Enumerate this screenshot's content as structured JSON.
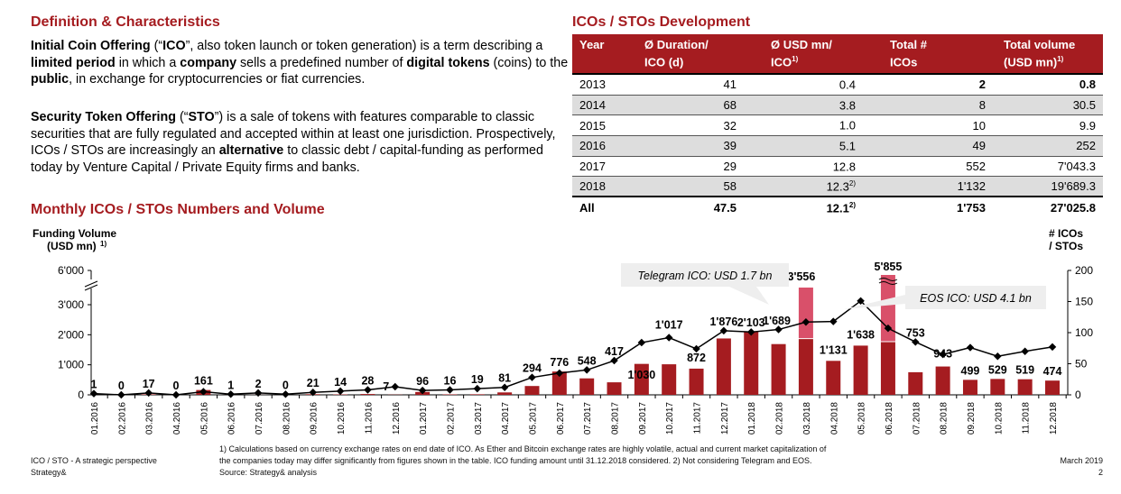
{
  "definition": {
    "title": "Definition & Characteristics",
    "ico_paragraph": [
      {
        "t": "Initial Coin Offering",
        "b": true
      },
      {
        "t": " (“",
        "b": false
      },
      {
        "t": "ICO",
        "b": true
      },
      {
        "t": "”, also token launch or token generation) is a term describing a ",
        "b": false
      },
      {
        "t": "limited period",
        "b": true
      },
      {
        "t": " in which a ",
        "b": false
      },
      {
        "t": "company",
        "b": true
      },
      {
        "t": " sells a predefined number of ",
        "b": false
      },
      {
        "t": "digital tokens",
        "b": true
      },
      {
        "t": " (coins) to the ",
        "b": false
      },
      {
        "t": "public",
        "b": true
      },
      {
        "t": ", in exchange for cryptocurrencies or fiat currencies.",
        "b": false
      }
    ],
    "sto_paragraph": [
      {
        "t": "Security Token Offering",
        "b": true
      },
      {
        "t": " (“",
        "b": false
      },
      {
        "t": "STO",
        "b": true
      },
      {
        "t": "”) is a sale of tokens with features comparable to classic securities that are fully regulated and accepted within at least one jurisdiction. Prospectively, ICOs / STOs are increasingly an ",
        "b": false
      },
      {
        "t": "alternative",
        "b": true
      },
      {
        "t": " to classic debt / capital-funding as performed today by Venture Capital / Private Equity firms and banks.",
        "b": false
      }
    ]
  },
  "table": {
    "title": "ICOs / STOs Development",
    "headers": [
      {
        "l1": "Year",
        "l2": "",
        "sup": ""
      },
      {
        "l1": "Ø Duration/",
        "l2": "ICO (d)",
        "sup": ""
      },
      {
        "l1": "Ø USD mn/",
        "l2": "ICO",
        "sup": "1)"
      },
      {
        "l1": "Total #",
        "l2": "ICOs",
        "sup": ""
      },
      {
        "l1": "Total volume",
        "l2": "(USD mn)",
        "sup": "1)"
      }
    ],
    "rows": [
      {
        "year": "2013",
        "duration": "41",
        "usd_per_ico": "0.4",
        "sup": "",
        "total": "2",
        "volume": "0.8"
      },
      {
        "year": "2014",
        "duration": "68",
        "usd_per_ico": "3.8",
        "sup": "",
        "total": "8",
        "volume": "30.5"
      },
      {
        "year": "2015",
        "duration": "32",
        "usd_per_ico": "1.0",
        "sup": "",
        "total": "10",
        "volume": "9.9"
      },
      {
        "year": "2016",
        "duration": "39",
        "usd_per_ico": "5.1",
        "sup": "",
        "total": "49",
        "volume": "252"
      },
      {
        "year": "2017",
        "duration": "29",
        "usd_per_ico": "12.8",
        "sup": "",
        "total": "552",
        "volume": "7'043.3"
      },
      {
        "year": "2018",
        "duration": "58",
        "usd_per_ico": "12.3",
        "sup": "2)",
        "total": "1'132",
        "volume": "19'689.3"
      },
      {
        "year": "All",
        "duration": "47.5",
        "usd_per_ico": "12.1",
        "sup": "2)",
        "total": "1'753",
        "volume": "27'025.8"
      }
    ]
  },
  "chart_title": "Monthly ICOs / STOs Numbers and Volume",
  "colors": {
    "accent": "#a51c20",
    "highlight": "#d9506a",
    "line": "#000000"
  },
  "chart_data": {
    "type": "bar+line",
    "left_axis_label": "Funding Volume (USD mn)",
    "left_axis_sup": "1)",
    "right_axis_label": "# ICOs / STOs",
    "left_ticks": [
      "0",
      "1'000",
      "2'000",
      "3'000",
      "6'000"
    ],
    "left_axis_break": "between 3'000 and 6'000",
    "right_ticks": [
      "0",
      "50",
      "100",
      "150",
      "200"
    ],
    "ylim_right": [
      0,
      200
    ],
    "categories": [
      "01.2016",
      "02.2016",
      "03.2016",
      "04.2016",
      "05.2016",
      "06.2016",
      "07.2016",
      "08.2016",
      "09.2016",
      "10.2016",
      "11.2016",
      "12.2016",
      "01.2017",
      "02.2017",
      "03.2017",
      "04.2017",
      "05.2017",
      "06.2017",
      "07.2017",
      "08.2017",
      "09.2017",
      "10.2017",
      "11.2017",
      "12.2017",
      "01.2018",
      "02.2018",
      "03.2018",
      "04.2018",
      "05.2018",
      "06.2018",
      "07.2018",
      "08.2018",
      "09.2018",
      "10.2018",
      "11.2018",
      "12.2018"
    ],
    "volume_labels": [
      "1",
      "0",
      "17",
      "0",
      "161",
      "1",
      "2",
      "0",
      "21",
      "14",
      "28",
      "7",
      "96",
      "16",
      "19",
      "81",
      "294",
      "776",
      "548",
      "417",
      "1'030",
      "1'017",
      "872",
      "1'876",
      "2'103",
      "1'689",
      "3'556",
      "1'131",
      "1'638",
      "5'855",
      "753",
      "943",
      "499",
      "529",
      "519",
      "474"
    ],
    "volume_usd_mn": [
      1,
      0,
      17,
      0,
      161,
      1,
      2,
      0,
      21,
      14,
      28,
      7,
      96,
      16,
      19,
      81,
      294,
      776,
      548,
      417,
      1030,
      1017,
      872,
      1876,
      2103,
      1689,
      3556,
      1131,
      1638,
      5855,
      753,
      943,
      499,
      529,
      519,
      474
    ],
    "ico_count": [
      2,
      0,
      3,
      0,
      5,
      1,
      3,
      1,
      4,
      6,
      8,
      13,
      7,
      8,
      10,
      12,
      28,
      35,
      40,
      55,
      84,
      92,
      74,
      103,
      101,
      105,
      117,
      118,
      151,
      107,
      85,
      65,
      76,
      62,
      70,
      77
    ],
    "annotations": [
      {
        "month": "03.2018",
        "text": "Telegram ICO: USD 1.7 bn",
        "usd_mn": 1700
      },
      {
        "month": "06.2018",
        "text": "EOS ICO: USD 4.1 bn",
        "usd_mn": 4100
      }
    ]
  },
  "footer": {
    "left1": "ICO / STO - A strategic perspective",
    "left2": "Strategy&",
    "note1": "1) Calculations based on currency exchange rates on end date of ICO. As Ether and Bitcoin exchange rates are highly volatile, actual and current market capitalization of",
    "note2": "the companies today may differ significantly from figures shown in the table. ICO funding amount until 31.12.2018 considered. 2) Not considering Telegram and EOS.",
    "source": "Source: Strategy& analysis",
    "date": "March 2019",
    "page": "2"
  }
}
